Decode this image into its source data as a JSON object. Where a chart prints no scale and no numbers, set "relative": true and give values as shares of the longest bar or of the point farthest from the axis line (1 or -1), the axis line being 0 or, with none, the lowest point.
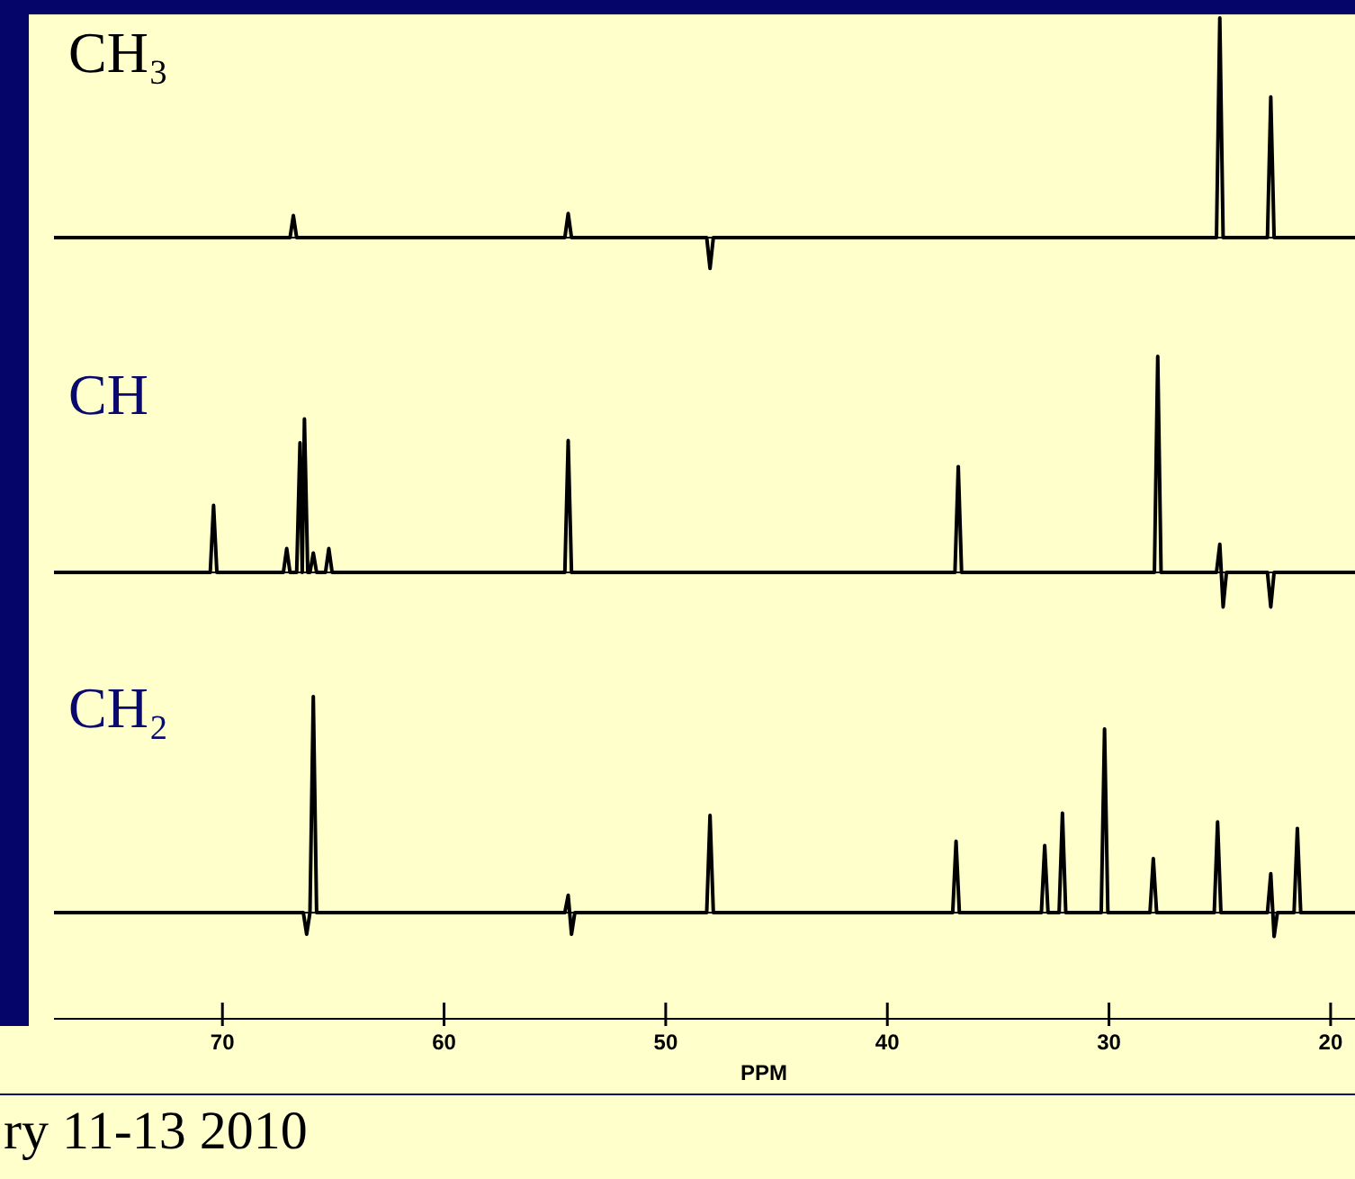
{
  "chart_data": [
    {
      "type": "line",
      "title": "CH₃",
      "relative": true,
      "xlim": [
        77.6,
        18.9
      ],
      "tick_labels": false,
      "series": [
        {
          "color": "#000000",
          "x": [
            77.6,
            66.95,
            66.8,
            66.65,
            54.55,
            54.4,
            54.25,
            48.15,
            48.0,
            47.85,
            25.15,
            25.0,
            24.85,
            22.85,
            22.7,
            22.55,
            18.9
          ],
          "values": [
            0,
            0,
            0.1,
            0,
            0,
            0.11,
            0,
            0,
            -0.14,
            0,
            0,
            1,
            0,
            0,
            0.64,
            0,
            0
          ]
        }
      ]
    },
    {
      "type": "line",
      "title": "CH",
      "relative": true,
      "xlim": [
        77.6,
        18.9
      ],
      "tick_labels": false,
      "series": [
        {
          "color": "#000000",
          "x": [
            77.6,
            70.55,
            70.4,
            70.25,
            67.25,
            67.1,
            66.95,
            66.65,
            66.5,
            66.4,
            66.3,
            66.15,
            66.05,
            65.9,
            65.75,
            65.35,
            65.2,
            65.05,
            54.55,
            54.4,
            54.25,
            36.95,
            36.8,
            36.65,
            27.95,
            27.8,
            27.65,
            25.15,
            25.0,
            24.85,
            24.7,
            22.85,
            22.7,
            22.55,
            18.9
          ],
          "values": [
            0,
            0,
            0.31,
            0,
            0,
            0.11,
            0,
            0,
            0.6,
            0,
            0.71,
            0,
            0,
            0.09,
            0,
            0,
            0.11,
            0,
            0,
            0.61,
            0,
            0,
            0.49,
            0,
            0,
            1,
            0,
            0,
            0.13,
            -0.16,
            0,
            0,
            -0.16,
            0,
            0
          ]
        }
      ]
    },
    {
      "type": "line",
      "title": "CH₂",
      "relative": true,
      "xlim": [
        77.6,
        18.9
      ],
      "xlabel": "PPM",
      "xticks": [
        70,
        60,
        50,
        40,
        30,
        20
      ],
      "annotations": [
        "ry 11-13 2010"
      ],
      "series": [
        {
          "color": "#000000",
          "x": [
            77.6,
            66.35,
            66.2,
            66.05,
            65.9,
            65.75,
            54.55,
            54.4,
            54.25,
            54.1,
            48.15,
            48.0,
            47.85,
            37.05,
            36.9,
            36.75,
            33.05,
            32.9,
            32.75,
            32.25,
            32.1,
            31.95,
            30.35,
            30.2,
            30.05,
            28.15,
            28.0,
            27.85,
            25.25,
            25.1,
            24.95,
            22.85,
            22.7,
            22.55,
            22.4,
            21.65,
            21.5,
            21.35,
            18.9
          ],
          "values": [
            0,
            0,
            -0.1,
            0,
            1,
            0,
            0,
            0.08,
            -0.1,
            0,
            0,
            0.45,
            0,
            0,
            0.33,
            0,
            0,
            0.31,
            0,
            0,
            0.46,
            0,
            0,
            0.85,
            0,
            0,
            0.25,
            0,
            0,
            0.42,
            0,
            0,
            0.18,
            -0.11,
            0,
            0,
            0.39,
            0,
            0
          ]
        }
      ]
    }
  ]
}
